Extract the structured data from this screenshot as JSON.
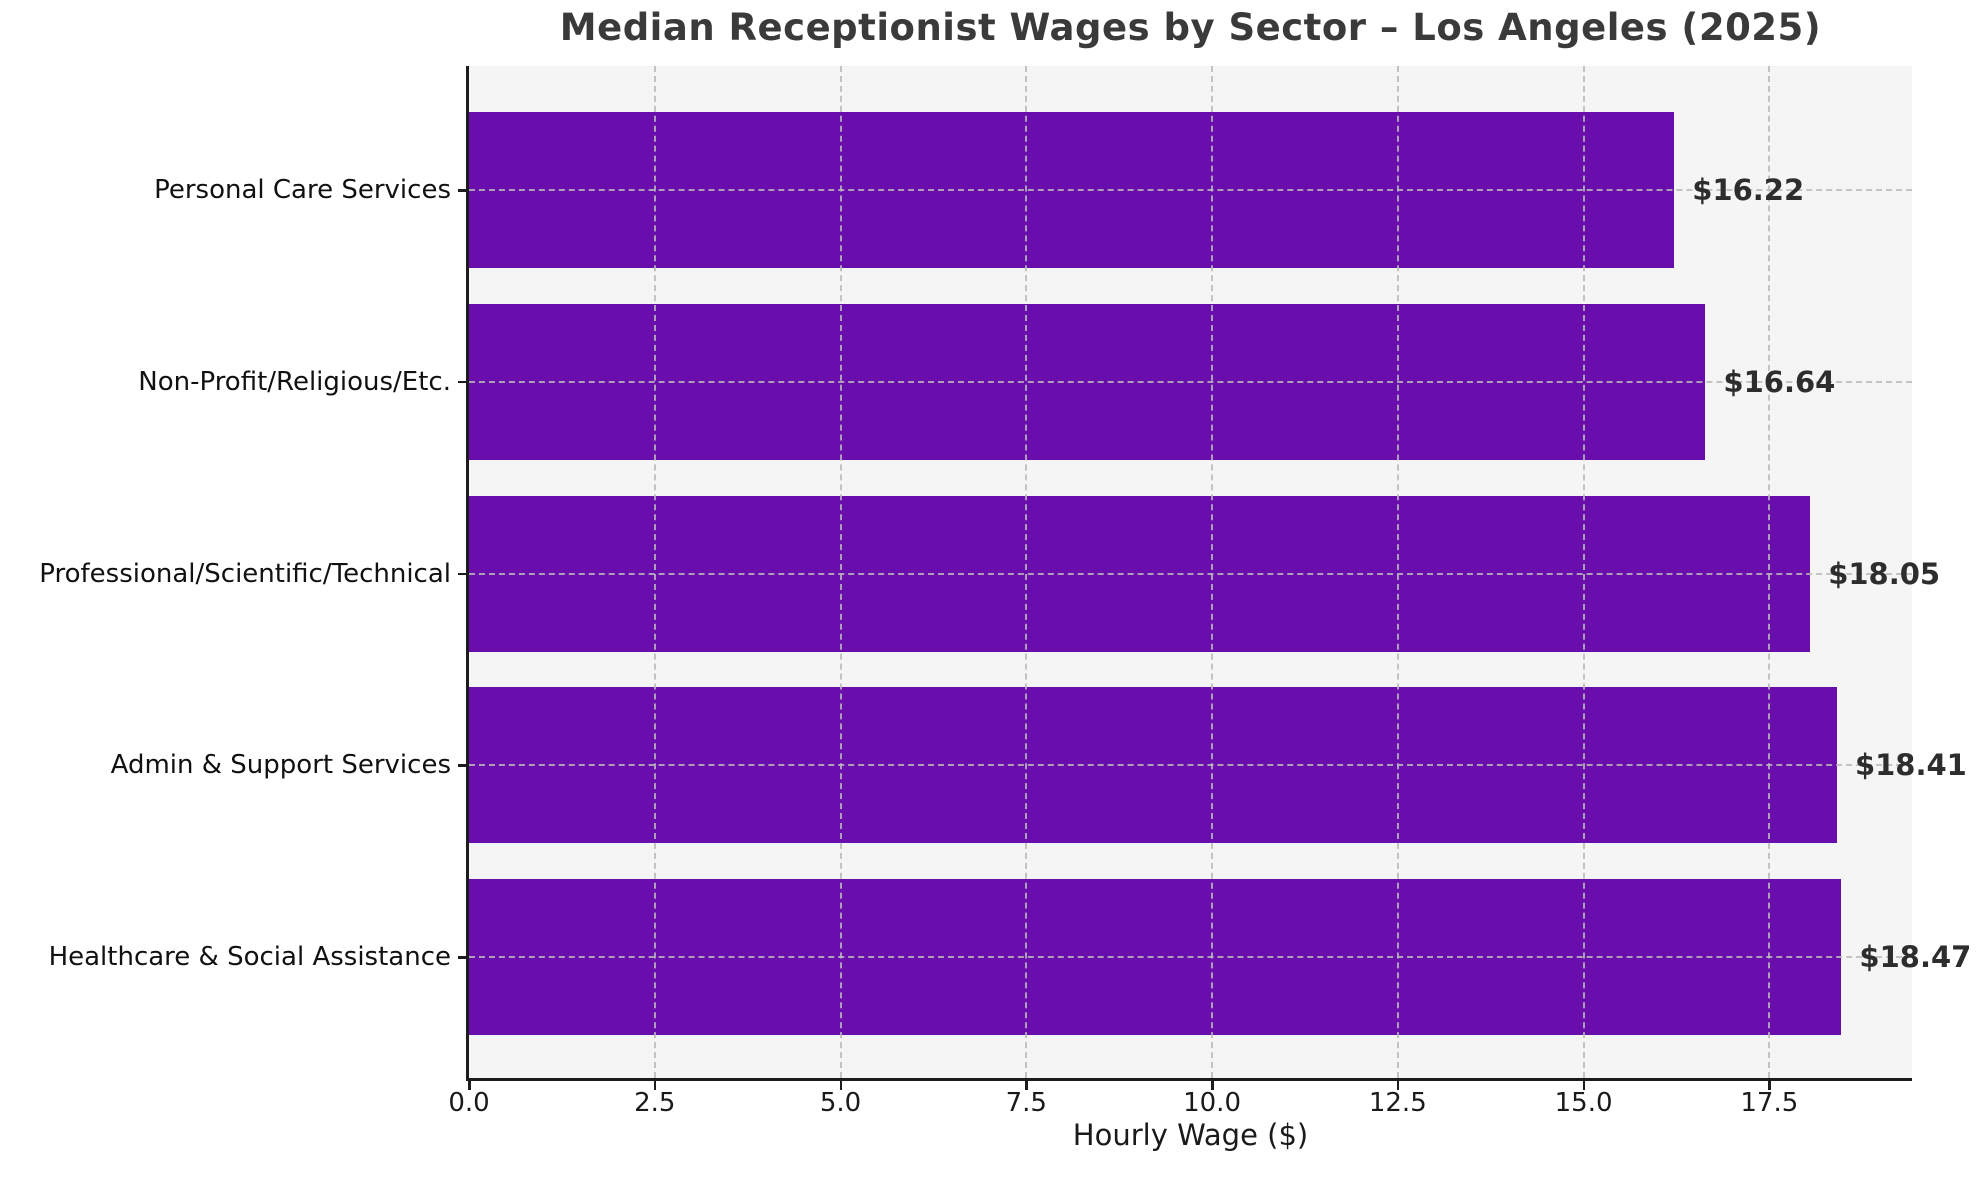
{
  "chart_data": {
    "type": "bar",
    "orientation": "horizontal",
    "title": "Median Receptionist Wages by Sector – Los Angeles (2025)",
    "xlabel": "Hourly Wage ($)",
    "ylabel": "",
    "categories": [
      "Personal Care Services",
      "Non-Profit/Religious/Etc.",
      "Professional/Scientific/Technical",
      "Admin & Support Services",
      "Healthcare & Social Assistance"
    ],
    "values": [
      16.22,
      16.64,
      18.05,
      18.41,
      18.47
    ],
    "value_labels": [
      "$16.22",
      "$16.64",
      "$18.05",
      "$18.41",
      "$18.47"
    ],
    "xticks": [
      0.0,
      2.5,
      5.0,
      7.5,
      10.0,
      12.5,
      15.0,
      17.5
    ],
    "xtick_labels": [
      "0.0",
      "2.5",
      "5.0",
      "7.5",
      "10.0",
      "12.5",
      "15.0",
      "17.5"
    ],
    "xlim": [
      0,
      19.42
    ],
    "grid": true,
    "legend": false,
    "bar_color": "#6A0DAD",
    "plot_background": "#f5f5f5",
    "figure_background": "#ffffff",
    "spine_color": "#1c1c1c",
    "gridline_color": "#bababa",
    "title_color": "#3a3a3a",
    "label_color": "#111111"
  }
}
